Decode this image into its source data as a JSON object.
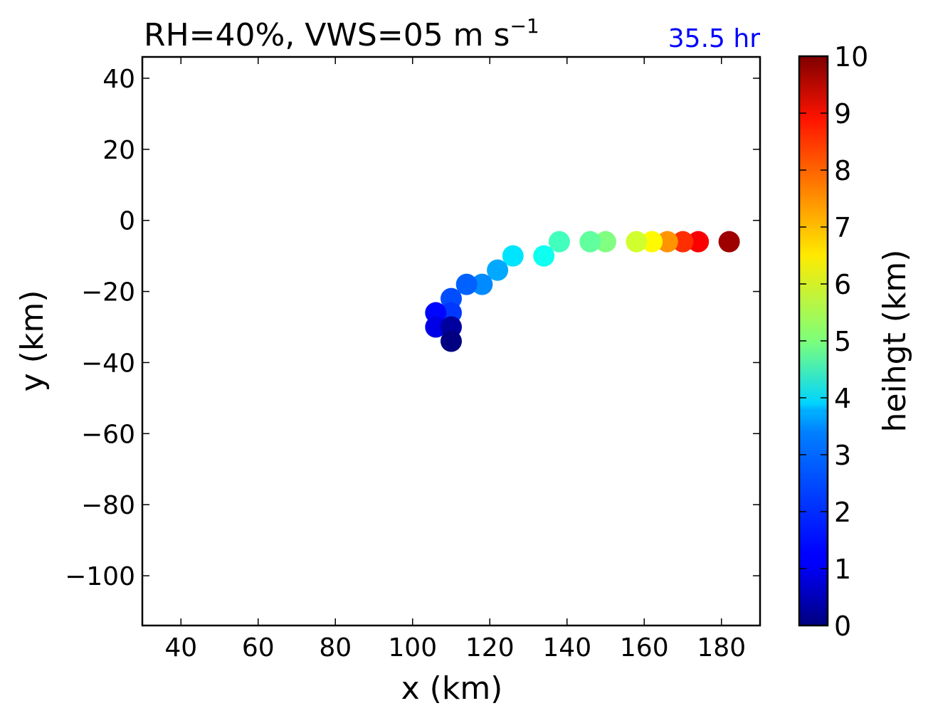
{
  "chart_data": {
    "type": "scatter",
    "title": "RH=40%, VWS=05 m s",
    "title_superscript": "−1",
    "time_label": "35.5 hr",
    "time_label_color": "#0000ff",
    "xlabel": "x (km)",
    "ylabel": "y (km)",
    "xlim": [
      30,
      190
    ],
    "ylim": [
      -114,
      46
    ],
    "xticks": [
      40,
      60,
      80,
      100,
      120,
      140,
      160,
      180
    ],
    "xtick_labels": [
      "40",
      "60",
      "80",
      "100",
      "120",
      "140",
      "160",
      "180"
    ],
    "yticks": [
      40,
      20,
      0,
      -20,
      -40,
      -60,
      -80,
      -100
    ],
    "ytick_labels": [
      "40",
      "20",
      "0",
      "−20",
      "−40",
      "−60",
      "−80",
      "−100"
    ],
    "grid": false,
    "colormap": "jet",
    "colorbar": {
      "label": "heihgt (km)",
      "range": [
        0,
        10
      ],
      "ticks": [
        0,
        1,
        2,
        3,
        4,
        5,
        6,
        7,
        8,
        9,
        10
      ],
      "tick_labels": [
        "0",
        "1",
        "2",
        "3",
        "4",
        "5",
        "6",
        "7",
        "8",
        "9",
        "10"
      ]
    },
    "points": [
      {
        "x": 110,
        "y": -34,
        "height": 0.0
      },
      {
        "x": 110,
        "y": -30,
        "height": 0.3
      },
      {
        "x": 106,
        "y": -30,
        "height": 1.0
      },
      {
        "x": 106,
        "y": -26,
        "height": 1.3
      },
      {
        "x": 110,
        "y": -26,
        "height": 1.8
      },
      {
        "x": 110,
        "y": -22,
        "height": 2.0
      },
      {
        "x": 114,
        "y": -18,
        "height": 2.2
      },
      {
        "x": 118,
        "y": -18,
        "height": 2.6
      },
      {
        "x": 122,
        "y": -14,
        "height": 2.9
      },
      {
        "x": 126,
        "y": -10,
        "height": 3.5
      },
      {
        "x": 134,
        "y": -10,
        "height": 3.9
      },
      {
        "x": 138,
        "y": -6,
        "height": 4.4
      },
      {
        "x": 146,
        "y": -6,
        "height": 4.7
      },
      {
        "x": 150,
        "y": -6,
        "height": 5.0
      },
      {
        "x": 158,
        "y": -6,
        "height": 5.8
      },
      {
        "x": 162,
        "y": -6,
        "height": 6.3
      },
      {
        "x": 166,
        "y": -6,
        "height": 7.3
      },
      {
        "x": 170,
        "y": -6,
        "height": 8.3
      },
      {
        "x": 174,
        "y": -6,
        "height": 8.8
      },
      {
        "x": 182,
        "y": -6,
        "height": 9.7
      }
    ]
  }
}
